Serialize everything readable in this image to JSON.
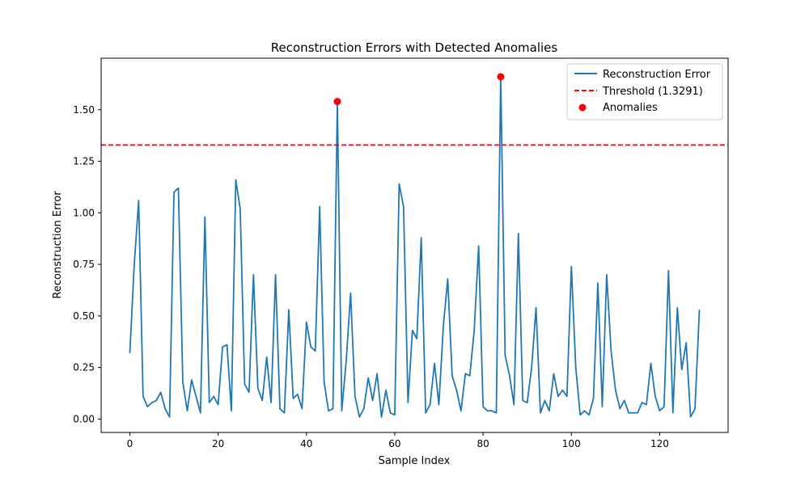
{
  "chart_data": {
    "type": "line",
    "title": "Reconstruction Errors with Detected Anomalies",
    "xlabel": "Sample Index",
    "ylabel": "Reconstruction Error",
    "xlim": [
      -6.5,
      135.5
    ],
    "ylim": [
      -0.065,
      1.75
    ],
    "x_ticks": [
      0,
      20,
      40,
      60,
      80,
      100,
      120
    ],
    "y_ticks": [
      0.0,
      0.25,
      0.5,
      0.75,
      1.0,
      1.25,
      1.5
    ],
    "y_tick_labels": [
      "0.00",
      "0.25",
      "0.50",
      "0.75",
      "1.00",
      "1.25",
      "1.50"
    ],
    "legend_position": "top-right",
    "colors": {
      "line": "#1f77b4",
      "threshold": "#ff0000",
      "anomaly": "#ff0000"
    },
    "series": [
      {
        "name": "Reconstruction Error",
        "x_start": 0,
        "values": [
          0.32,
          0.75,
          1.06,
          0.11,
          0.06,
          0.08,
          0.09,
          0.13,
          0.05,
          0.01,
          1.1,
          1.12,
          0.18,
          0.04,
          0.19,
          0.11,
          0.03,
          0.98,
          0.08,
          0.11,
          0.07,
          0.35,
          0.36,
          0.04,
          1.16,
          1.02,
          0.17,
          0.13,
          0.7,
          0.15,
          0.09,
          0.3,
          0.08,
          0.7,
          0.05,
          0.03,
          0.53,
          0.1,
          0.12,
          0.05,
          0.47,
          0.35,
          0.33,
          1.03,
          0.18,
          0.04,
          0.05,
          1.54,
          0.04,
          0.28,
          0.61,
          0.11,
          0.01,
          0.05,
          0.2,
          0.09,
          0.22,
          0.01,
          0.14,
          0.03,
          0.02,
          1.14,
          1.03,
          0.08,
          0.43,
          0.39,
          0.88,
          0.03,
          0.07,
          0.27,
          0.07,
          0.45,
          0.68,
          0.21,
          0.14,
          0.04,
          0.22,
          0.21,
          0.43,
          0.84,
          0.06,
          0.04,
          0.04,
          0.03,
          1.66,
          0.31,
          0.21,
          0.07,
          0.9,
          0.09,
          0.08,
          0.25,
          0.54,
          0.03,
          0.09,
          0.04,
          0.22,
          0.11,
          0.14,
          0.11,
          0.74,
          0.25,
          0.02,
          0.04,
          0.02,
          0.1,
          0.66,
          0.06,
          0.7,
          0.33,
          0.14,
          0.05,
          0.09,
          0.03,
          0.03,
          0.03,
          0.08,
          0.07,
          0.27,
          0.11,
          0.04,
          0.06,
          0.72,
          0.03,
          0.54,
          0.24,
          0.37,
          0.01,
          0.05,
          0.53
        ]
      },
      {
        "name": "Threshold (1.3291)",
        "type": "hline",
        "value": 1.3291
      },
      {
        "name": "Anomalies",
        "type": "scatter",
        "points": [
          {
            "x": 47,
            "y": 1.54
          },
          {
            "x": 84,
            "y": 1.66
          }
        ]
      }
    ]
  }
}
